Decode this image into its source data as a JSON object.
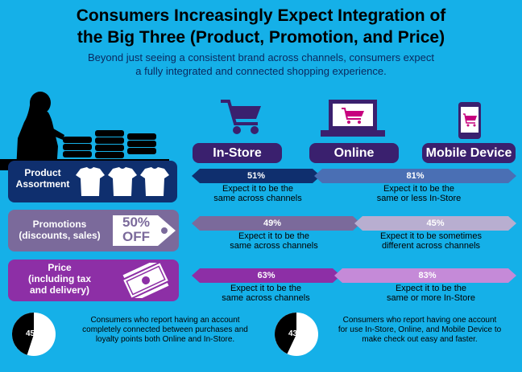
{
  "title_line1": "Consumers Increasingly Expect Integration of",
  "title_line2": "the Big Three (Product, Promotion, and Price)",
  "subtitle_line1": "Beyond just seeing a consistent brand across channels, consumers expect",
  "subtitle_line2": "a fully integrated and connected shopping experience.",
  "channels": [
    "In-Store",
    "Online",
    "Mobile Device"
  ],
  "rows": [
    {
      "label_lines": [
        "Product",
        "Assortment"
      ],
      "left_pct": "51%",
      "right_pct": "81%",
      "left_desc": [
        "Expect it to be the",
        "same across channels"
      ],
      "right_desc": [
        "Expect it to be the",
        "same or less In-Store"
      ]
    },
    {
      "label_lines": [
        "Promotions",
        "(discounts, sales)"
      ],
      "badge_line1": "50%",
      "badge_line2": "OFF",
      "left_pct": "49%",
      "right_pct": "45%",
      "left_desc": [
        "Expect it to be the",
        "same across channels"
      ],
      "right_desc": [
        "Expect it to be sometimes",
        "different across channels"
      ]
    },
    {
      "label_lines": [
        "Price",
        "(including tax",
        "and delivery)"
      ],
      "left_pct": "63%",
      "right_pct": "83%",
      "left_desc": [
        "Expect it to be the",
        "same across channels"
      ],
      "right_desc": [
        "Expect it to be the",
        "same or more In-Store"
      ]
    }
  ],
  "notes": [
    {
      "pct": "45%",
      "value": 45,
      "lines": [
        "Consumers who report having an account",
        "completely connected between purchases and",
        "loyalty points both Online and In-Store."
      ]
    },
    {
      "pct": "43%",
      "value": 43,
      "lines": [
        "Consumers who report having one account",
        "for use In-Store, Online, and Mobile Device to",
        "make check out easy and faster."
      ]
    }
  ],
  "colors": {
    "background": "#15b0e8",
    "row1": "#0f2f6e",
    "row2": "#7b6a9b",
    "row3": "#8d2fa6",
    "row1_light": "#4a6fb4",
    "row2_light": "#b8aed0",
    "row3_light": "#c58ad8",
    "channel": "#3a206e"
  },
  "icons": [
    "woman-shopper-icon",
    "shopping-cart-icon",
    "laptop-cart-icon",
    "mobile-cart-icon",
    "tshirt-icon",
    "price-tag-icon",
    "money-icon"
  ]
}
